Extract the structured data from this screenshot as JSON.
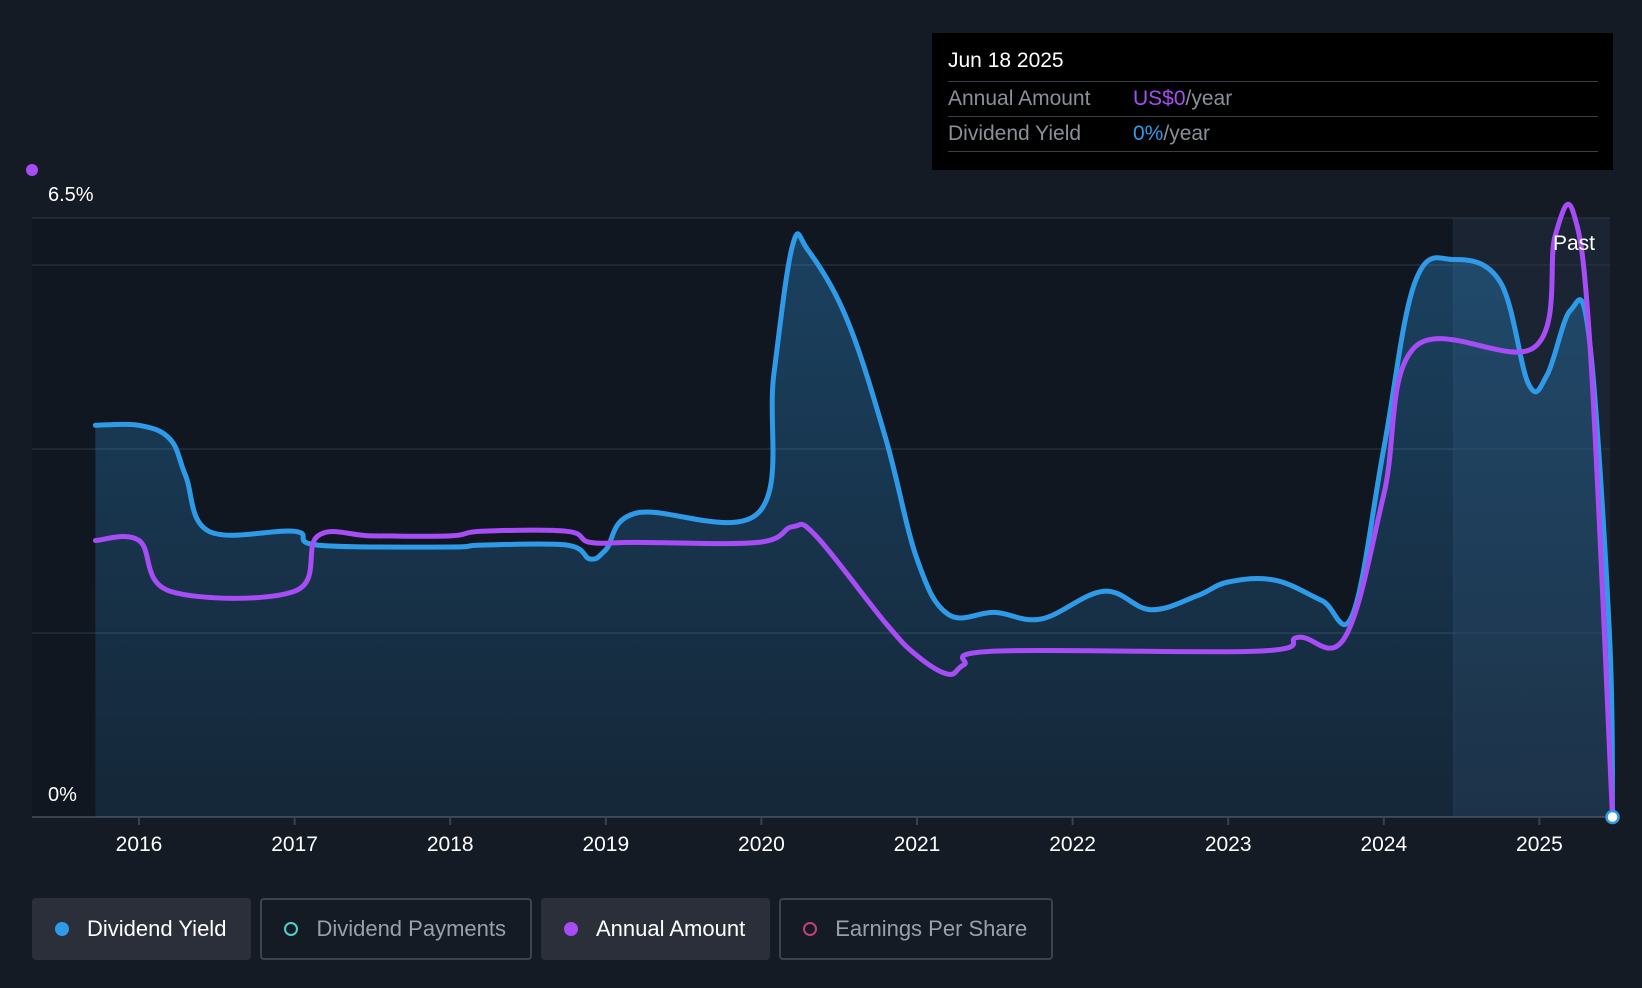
{
  "tooltip": {
    "date": "Jun 18 2025",
    "rows": [
      {
        "label": "Annual Amount",
        "value": "US$0",
        "suffix": "/year",
        "color": "#a64df5"
      },
      {
        "label": "Dividend Yield",
        "value": "0%",
        "suffix": "/year",
        "color": "#2f9be8"
      }
    ]
  },
  "legend": [
    {
      "label": "Dividend Yield",
      "color": "#2f9be8",
      "active": true
    },
    {
      "label": "Dividend Payments",
      "color": "#4fd1c5",
      "active": false
    },
    {
      "label": "Annual Amount",
      "color": "#a64df5",
      "active": true
    },
    {
      "label": "Earnings Per Share",
      "color": "#c2407a",
      "active": false
    }
  ],
  "chart_data": {
    "type": "line",
    "x_ticks": [
      "2016",
      "2017",
      "2018",
      "2019",
      "2020",
      "2021",
      "2022",
      "2023",
      "2024",
      "2025"
    ],
    "y_tick_labels": [
      "6.5%",
      "0%"
    ],
    "y_range": [
      0,
      6.5
    ],
    "past_label": "Past",
    "past_region_start": 2024.45,
    "series": [
      {
        "name": "Dividend Yield",
        "color": "#2f9be8",
        "filled": true,
        "points": [
          [
            2015.72,
            4.25
          ],
          [
            2016.0,
            4.25
          ],
          [
            2016.2,
            4.1
          ],
          [
            2016.3,
            3.7
          ],
          [
            2016.45,
            3.1
          ],
          [
            2017.0,
            3.1
          ],
          [
            2017.15,
            2.95
          ],
          [
            2018.0,
            2.93
          ],
          [
            2018.2,
            2.95
          ],
          [
            2018.75,
            2.95
          ],
          [
            2018.9,
            2.8
          ],
          [
            2019.0,
            2.9
          ],
          [
            2019.2,
            3.3
          ],
          [
            2019.98,
            3.3
          ],
          [
            2020.08,
            4.8
          ],
          [
            2020.2,
            6.2
          ],
          [
            2020.3,
            6.15
          ],
          [
            2020.55,
            5.4
          ],
          [
            2020.8,
            4.1
          ],
          [
            2021.0,
            2.8
          ],
          [
            2021.2,
            2.2
          ],
          [
            2021.5,
            2.22
          ],
          [
            2021.8,
            2.15
          ],
          [
            2022.2,
            2.45
          ],
          [
            2022.5,
            2.25
          ],
          [
            2022.8,
            2.4
          ],
          [
            2023.0,
            2.55
          ],
          [
            2023.3,
            2.57
          ],
          [
            2023.6,
            2.35
          ],
          [
            2023.8,
            2.2
          ],
          [
            2024.0,
            4.0
          ],
          [
            2024.2,
            5.8
          ],
          [
            2024.45,
            6.05
          ],
          [
            2024.75,
            5.8
          ],
          [
            2024.93,
            4.7
          ],
          [
            2025.05,
            4.8
          ],
          [
            2025.2,
            5.5
          ],
          [
            2025.32,
            5.2
          ],
          [
            2025.45,
            2.0
          ],
          [
            2025.47,
            0.0
          ]
        ]
      },
      {
        "name": "Annual Amount",
        "color": "#a64df5",
        "filled": false,
        "points": [
          [
            2015.72,
            3.0
          ],
          [
            2016.0,
            3.0
          ],
          [
            2016.2,
            2.45
          ],
          [
            2017.0,
            2.45
          ],
          [
            2017.15,
            3.05
          ],
          [
            2017.5,
            3.05
          ],
          [
            2018.0,
            3.05
          ],
          [
            2018.2,
            3.1
          ],
          [
            2018.75,
            3.1
          ],
          [
            2018.9,
            2.98
          ],
          [
            2019.2,
            2.98
          ],
          [
            2019.98,
            2.98
          ],
          [
            2020.2,
            3.15
          ],
          [
            2020.35,
            3.05
          ],
          [
            2020.8,
            2.1
          ],
          [
            2021.0,
            1.75
          ],
          [
            2021.2,
            1.55
          ],
          [
            2021.3,
            1.65
          ],
          [
            2021.5,
            1.8
          ],
          [
            2023.2,
            1.8
          ],
          [
            2023.45,
            1.95
          ],
          [
            2023.75,
            1.95
          ],
          [
            2024.0,
            3.5
          ],
          [
            2024.2,
            5.1
          ],
          [
            2024.97,
            5.1
          ],
          [
            2025.1,
            6.3
          ],
          [
            2025.22,
            6.55
          ],
          [
            2025.33,
            5.0
          ],
          [
            2025.47,
            0.0
          ]
        ]
      }
    ]
  }
}
